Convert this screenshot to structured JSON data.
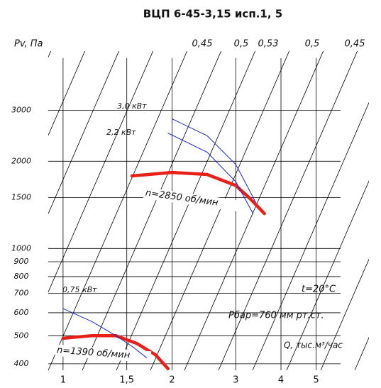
{
  "chart_data": {
    "type": "line",
    "title": "ВЦП 6-45-3,15 исп.1, 5",
    "y_label": "Pv, Па",
    "x_label": "Q, тыс.м³/час",
    "log_x": true,
    "log_y": true,
    "grid": true,
    "xlim": [
      0.91,
      7
    ],
    "ylim": [
      380,
      4800
    ],
    "xticks": [
      1,
      {
        "value": 1.5,
        "label": "1,5"
      },
      2,
      3,
      4,
      5
    ],
    "yticks": [
      400,
      500,
      600,
      700,
      800,
      900,
      1000,
      1500,
      2000,
      3000
    ],
    "efficiency_labels": [
      "0,45",
      "0,5",
      "0,53",
      "0,5",
      "0,45"
    ],
    "annotations": [
      "t=20°C",
      "Рбар=760 мм рт.ст."
    ],
    "series": [
      {
        "name": "n=2850 об/мин",
        "color": "#e8201a",
        "x": [
          1.55,
          2,
          2.5,
          3,
          3.3,
          3.6
        ],
        "values": [
          1780,
          1830,
          1800,
          1650,
          1480,
          1320
        ]
      },
      {
        "name": "3,0 кВт",
        "color": "#1a22c8",
        "x": [
          2.0,
          2.5,
          3.0,
          3.4
        ],
        "values": [
          2800,
          2450,
          1950,
          1450
        ]
      },
      {
        "name": "2,2 кВт",
        "color": "#1a22c8",
        "x": [
          1.95,
          2.5,
          3.0,
          3.35
        ],
        "values": [
          2500,
          2150,
          1700,
          1320
        ]
      },
      {
        "name": "n=1390 об/мин",
        "color": "#e8201a",
        "x": [
          1.0,
          1.2,
          1.4,
          1.6,
          1.8,
          1.95
        ],
        "values": [
          490,
          500,
          500,
          470,
          430,
          385
        ]
      },
      {
        "name": "0,75 кВт",
        "color": "#1a22c8",
        "x": [
          1.0,
          1.2,
          1.4,
          1.55,
          1.7
        ],
        "values": [
          620,
          560,
          500,
          460,
          420
        ]
      }
    ]
  }
}
